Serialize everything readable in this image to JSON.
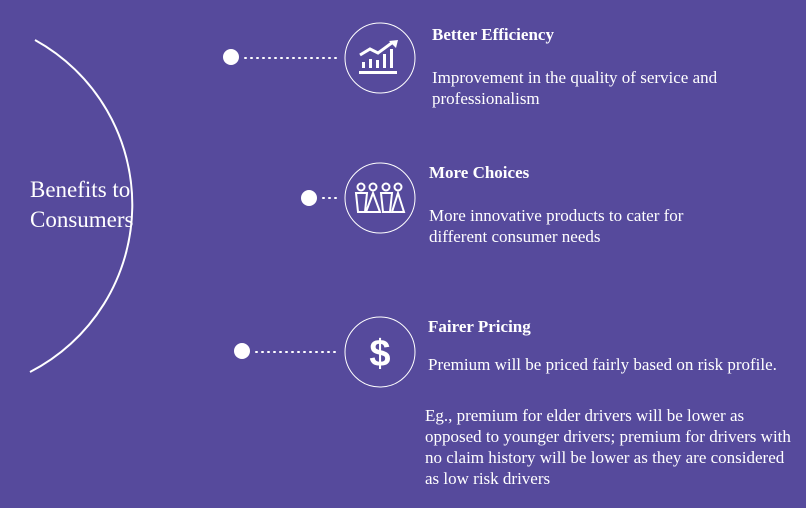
{
  "center_label": {
    "line1": "Benefits to",
    "line2": "Consumers"
  },
  "items": [
    {
      "icon": "growth-chart-icon",
      "title": "Better Efficiency",
      "text": "Improvement in the quality of service and professionalism"
    },
    {
      "icon": "people-group-icon",
      "title": "More Choices",
      "text": "More innovative products to cater for different consumer needs"
    },
    {
      "icon": "dollar-icon",
      "title": "Fairer Pricing",
      "text": "Premium will be priced fairly based on risk profile.",
      "example": "Eg., premium for elder drivers will be lower as opposed to younger drivers; premium for drivers with no claim history will be lower as they are considered as low risk drivers"
    }
  ],
  "colors": {
    "background": "#564a9c",
    "foreground": "#ffffff"
  }
}
